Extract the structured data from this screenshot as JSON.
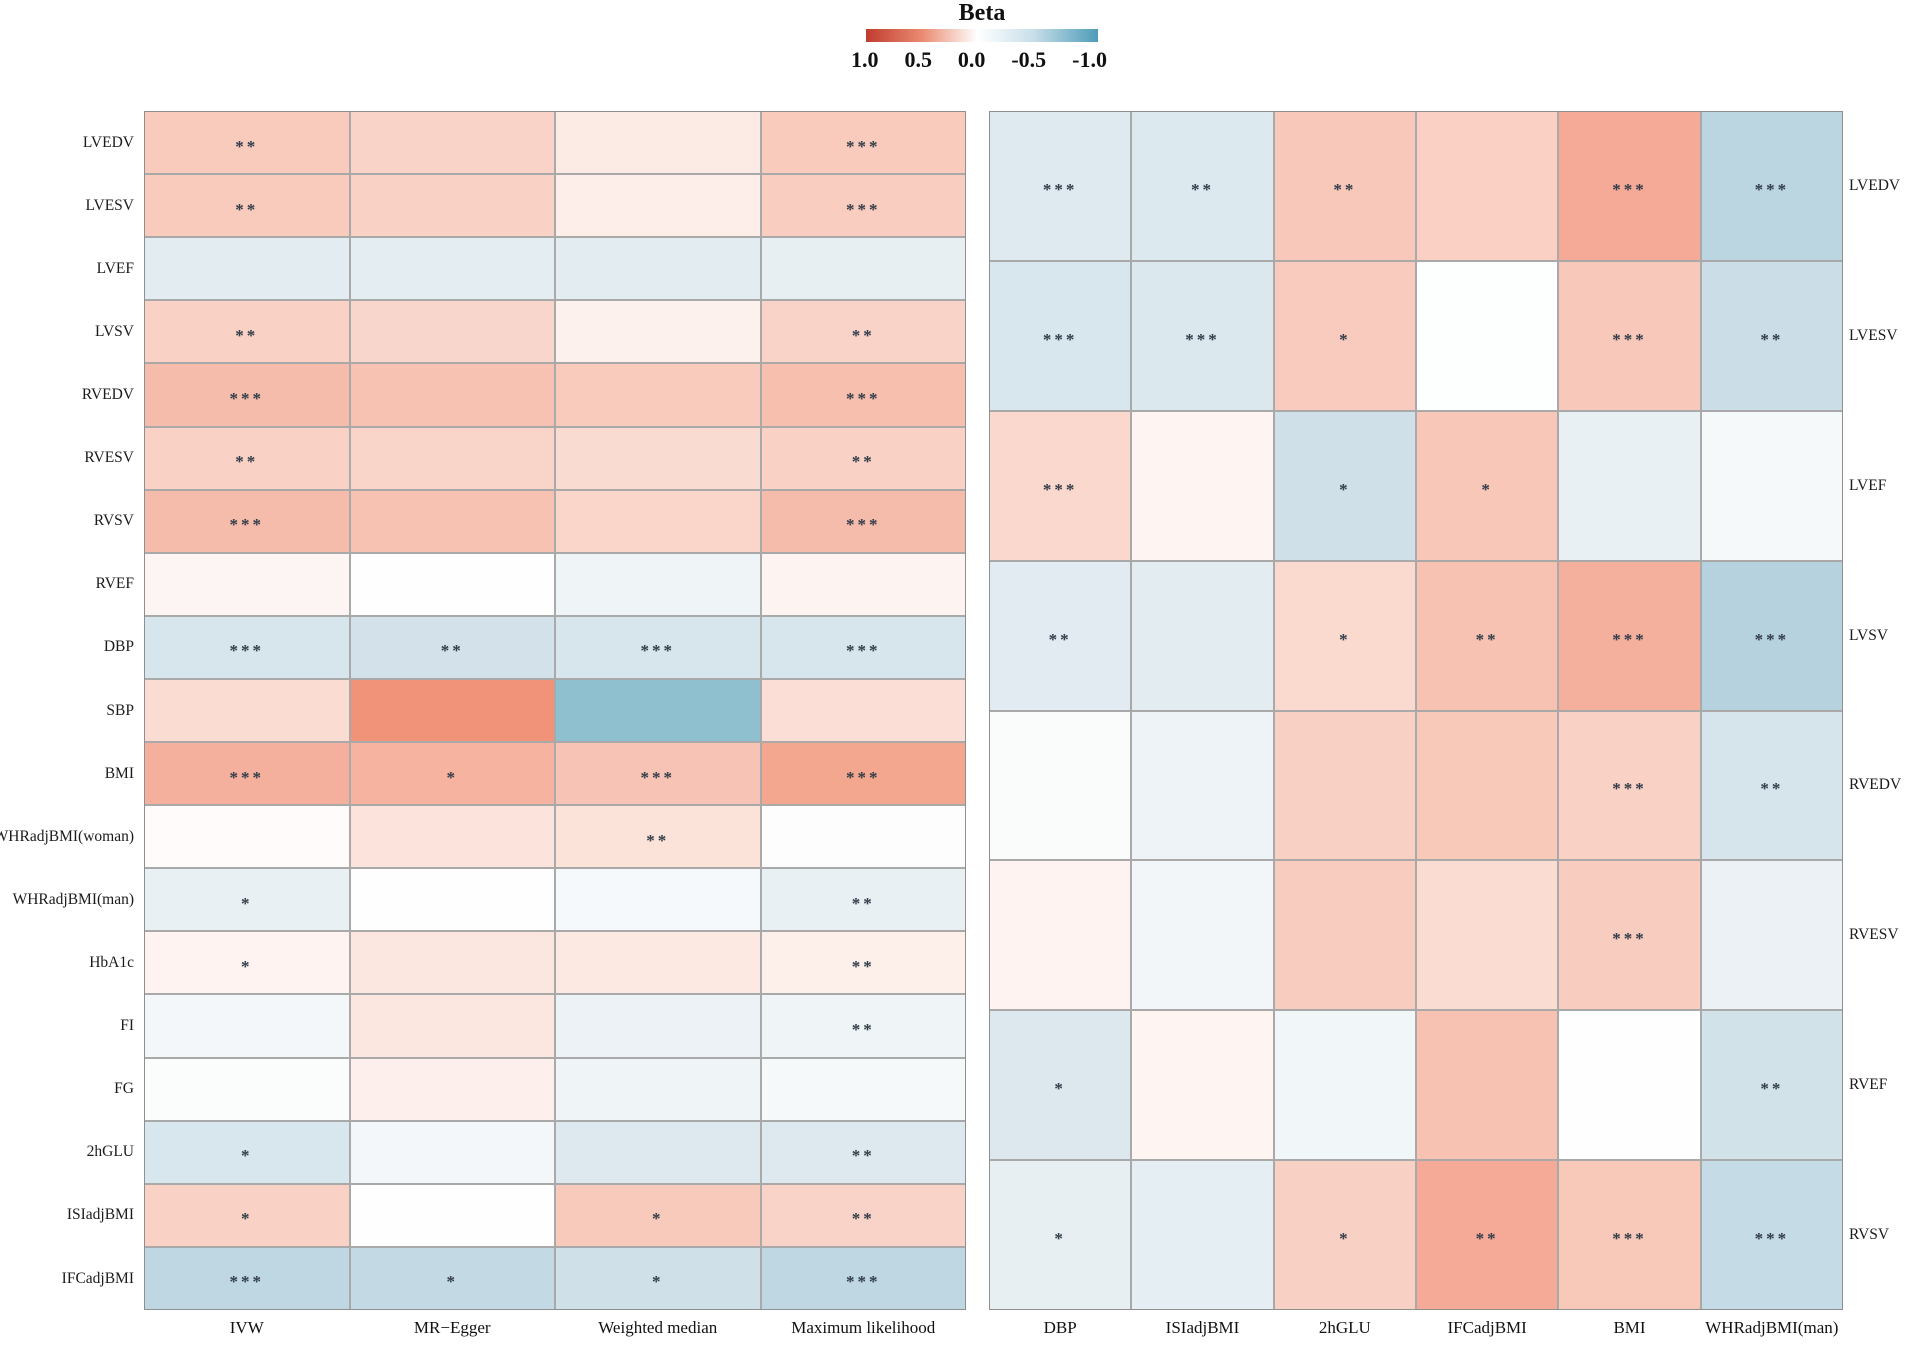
{
  "legend": {
    "title": "Beta",
    "tick_labels": [
      "1.0",
      "0.5",
      "0.0",
      "-0.5",
      "-1.0"
    ],
    "value_range": [
      1.0,
      -1.0
    ],
    "color_stops": [
      "#c13b2e",
      "#e98a70",
      "#ffffff",
      "#c9dfe9",
      "#4d9cb8"
    ]
  },
  "chart_data": [
    {
      "type": "heatmap",
      "name": "mr_methods",
      "panel": "left",
      "x_labels": [
        "IVW",
        "MR−Egger",
        "Weighted median",
        "Maximum likelihood"
      ],
      "y_labels": [
        "LVEDV",
        "LVESV",
        "LVEF",
        "LVSV",
        "RVEDV",
        "RVESV",
        "RVSV",
        "RVEF",
        "DBP",
        "SBP",
        "BMI",
        "WHRadjBMI(woman)",
        "WHRadjBMI(man)",
        "HbA1c",
        "FI",
        "FG",
        "2hGLU",
        "ISIadjBMI",
        "IFCadjBMI"
      ],
      "y_axis_side": "left",
      "legend_variable": "Beta",
      "cell_colors": [
        [
          "#f8cbbd",
          "#f9d3c8",
          "#fcebe5",
          "#f8cbbd"
        ],
        [
          "#f8cbbd",
          "#f9d1c5",
          "#fdeee9",
          "#f9cec1"
        ],
        [
          "#e3ecf1",
          "#e4edf1",
          "#e3ecf1",
          "#e7eff3"
        ],
        [
          "#f9d1c5",
          "#f9d6cb",
          "#fdf1ee",
          "#f9d3c8"
        ],
        [
          "#f6bcab",
          "#f7c2b1",
          "#f8cbbd",
          "#f7bfae"
        ],
        [
          "#f9d1c5",
          "#f9d4c9",
          "#fadbd1",
          "#f9d1c5"
        ],
        [
          "#f6bcab",
          "#f7c2b1",
          "#f9d5ca",
          "#f6bcab"
        ],
        [
          "#fdf5f3",
          "#fefefe",
          "#eff4f6",
          "#fdf3f0"
        ],
        [
          "#d7e5ec",
          "#d3e2ea",
          "#d7e5ec",
          "#d7e5ec"
        ],
        [
          "#fbdcd2",
          "#f09379",
          "#8fc0cf",
          "#fbded5"
        ],
        [
          "#f5b09d",
          "#f5b3a0",
          "#f7c3b5",
          "#f3a78f"
        ],
        [
          "#fefbfa",
          "#fce4dc",
          "#fce3da",
          "#fefdfd"
        ],
        [
          "#e9f0f4",
          "#fefefe",
          "#f6f9fb",
          "#e9f0f4"
        ],
        [
          "#fef3f0",
          "#fce7e0",
          "#fce9e2",
          "#fdf0eb"
        ],
        [
          "#f3f7f9",
          "#fce7e0",
          "#ecf2f6",
          "#eff4f7"
        ],
        [
          "#fbfcfc",
          "#fdefeb",
          "#eff4f6",
          "#f6f9fa"
        ],
        [
          "#d8e6ed",
          "#f3f7f9",
          "#dde9ef",
          "#dee9ef"
        ],
        [
          "#f9d1c5",
          "#fefefe",
          "#f8cabc",
          "#f9d3c8"
        ],
        [
          "#bed7e2",
          "#c3dae4",
          "#cfe0e8",
          "#bed7e2"
        ]
      ],
      "significance": [
        [
          "**",
          "",
          "",
          "***"
        ],
        [
          "**",
          "",
          "",
          "***"
        ],
        [
          "",
          "",
          "",
          ""
        ],
        [
          "**",
          "",
          "",
          "**"
        ],
        [
          "***",
          "",
          "",
          "***"
        ],
        [
          "**",
          "",
          "",
          "**"
        ],
        [
          "***",
          "",
          "",
          "***"
        ],
        [
          "",
          "",
          "",
          ""
        ],
        [
          "***",
          "**",
          "***",
          "***"
        ],
        [
          "",
          "",
          "",
          ""
        ],
        [
          "***",
          "*",
          "***",
          "***"
        ],
        [
          "",
          "",
          "**",
          ""
        ],
        [
          "*",
          "",
          "",
          "**"
        ],
        [
          "*",
          "",
          "",
          "**"
        ],
        [
          "",
          "",
          "",
          "**"
        ],
        [
          "",
          "",
          "",
          ""
        ],
        [
          "*",
          "",
          "",
          "**"
        ],
        [
          "*",
          "",
          "*",
          "**"
        ],
        [
          "***",
          "*",
          "*",
          "***"
        ]
      ],
      "beta_estimate": [
        [
          0.2,
          0.17,
          0.07,
          0.2
        ],
        [
          0.2,
          0.18,
          0.06,
          0.19
        ],
        [
          -0.09,
          -0.08,
          -0.09,
          -0.07
        ],
        [
          0.18,
          0.16,
          0.05,
          0.17
        ],
        [
          0.28,
          0.25,
          0.2,
          0.27
        ],
        [
          0.18,
          0.17,
          0.14,
          0.18
        ],
        [
          0.28,
          0.25,
          0.16,
          0.28
        ],
        [
          0.03,
          0.0,
          -0.05,
          0.04
        ],
        [
          -0.15,
          -0.17,
          -0.15,
          -0.15
        ],
        [
          0.14,
          0.48,
          -0.48,
          0.13
        ],
        [
          0.33,
          0.32,
          0.25,
          0.37
        ],
        [
          0.01,
          0.11,
          0.12,
          0.01
        ],
        [
          -0.07,
          0.0,
          -0.03,
          -0.07
        ],
        [
          0.04,
          0.1,
          0.09,
          0.05
        ],
        [
          -0.04,
          0.1,
          -0.06,
          -0.05
        ],
        [
          -0.01,
          0.06,
          -0.05,
          -0.03
        ],
        [
          -0.15,
          -0.04,
          -0.12,
          -0.12
        ],
        [
          0.18,
          0.0,
          0.21,
          0.17
        ],
        [
          -0.27,
          -0.24,
          -0.19,
          -0.27
        ]
      ]
    },
    {
      "type": "heatmap",
      "name": "exposure_outcome",
      "panel": "right",
      "x_labels": [
        "DBP",
        "ISIadjBMI",
        "2hGLU",
        "IFCadjBMI",
        "BMI",
        "WHRadjBMI(man)"
      ],
      "y_labels": [
        "LVEDV",
        "LVESV",
        "LVEF",
        "LVSV",
        "RVEDV",
        "RVESV",
        "RVEF",
        "RVSV"
      ],
      "y_axis_side": "right",
      "legend_variable": "Beta",
      "cell_colors": [
        [
          "#dfeaf0",
          "#dce9ef",
          "#f8c8ba",
          "#f9d0c3",
          "#f4aa96",
          "#bcd6e1"
        ],
        [
          "#d8e6ed",
          "#dbe8ee",
          "#f9cabe",
          "#fdfefe",
          "#f8c9bb",
          "#cbdee7"
        ],
        [
          "#fbd8cd",
          "#fef5f2",
          "#cfe0e9",
          "#f8c7b8",
          "#e9f0f4",
          "#f6f9fa"
        ],
        [
          "#e2ebf1",
          "#e2ecf1",
          "#fad9ce",
          "#f7c2b2",
          "#f5b09d",
          "#b7d2df"
        ],
        [
          "#fafcfc",
          "#edf3f6",
          "#f9d0c4",
          "#f8c8b9",
          "#f9d1c5",
          "#d6e4eb"
        ],
        [
          "#fef3f0",
          "#f2f6f8",
          "#f8ccbf",
          "#fbdcd3",
          "#f8ccbf",
          "#ebf1f5"
        ],
        [
          "#dce8ee",
          "#fef5f2",
          "#f1f6f8",
          "#f7c2b2",
          "#fefefe",
          "#d2e2e9"
        ],
        [
          "#e7eff2",
          "#e5eef2",
          "#f9d0c4",
          "#f4aa96",
          "#f8c8b9",
          "#c5dbe5"
        ]
      ],
      "significance": [
        [
          "***",
          "**",
          "**",
          "",
          "***",
          "***"
        ],
        [
          "***",
          "***",
          "*",
          "",
          "***",
          "**"
        ],
        [
          "***",
          "",
          "*",
          "*",
          "",
          ""
        ],
        [
          "**",
          "",
          "*",
          "**",
          "***",
          "***"
        ],
        [
          "",
          "",
          "",
          "",
          "***",
          "**"
        ],
        [
          "",
          "",
          "",
          "",
          "***",
          ""
        ],
        [
          "*",
          "",
          "",
          "",
          "",
          "**"
        ],
        [
          "*",
          "",
          "*",
          "**",
          "***",
          "***"
        ]
      ],
      "beta_estimate": [
        [
          -0.11,
          -0.12,
          0.22,
          0.18,
          0.36,
          -0.28
        ],
        [
          -0.15,
          -0.13,
          0.19,
          0.0,
          0.21,
          -0.21
        ],
        [
          0.15,
          0.04,
          -0.19,
          0.22,
          -0.08,
          -0.03
        ],
        [
          -0.1,
          -0.1,
          0.15,
          0.24,
          0.33,
          -0.31
        ],
        [
          -0.01,
          -0.06,
          0.18,
          0.22,
          0.18,
          -0.16
        ],
        [
          0.04,
          -0.04,
          0.2,
          0.14,
          0.2,
          -0.07
        ],
        [
          -0.13,
          0.04,
          -0.04,
          0.24,
          0.0,
          -0.18
        ],
        [
          -0.08,
          -0.09,
          0.18,
          0.36,
          0.22,
          -0.24
        ]
      ]
    }
  ]
}
